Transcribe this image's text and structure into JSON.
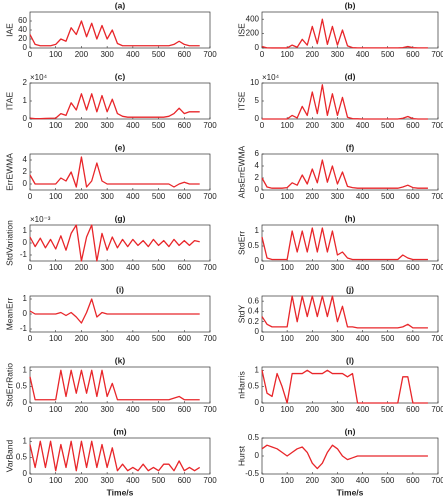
{
  "chart_data": [
    {
      "type": "line",
      "title": "(a)",
      "ylabel": "IAE",
      "color": "#e8262a",
      "xlim": [
        0,
        700
      ],
      "xticks": [
        0,
        100,
        200,
        300,
        400,
        500,
        600,
        700
      ],
      "ylim": [
        0,
        80
      ],
      "yticks": [
        0,
        20,
        40,
        60
      ],
      "x": [
        0,
        20,
        40,
        60,
        80,
        100,
        120,
        140,
        160,
        180,
        200,
        220,
        240,
        260,
        280,
        300,
        320,
        340,
        360,
        380,
        400,
        420,
        440,
        460,
        480,
        500,
        520,
        540,
        560,
        580,
        600,
        620,
        640,
        660
      ],
      "values": [
        30,
        8,
        5,
        5,
        5,
        8,
        20,
        15,
        45,
        30,
        60,
        25,
        55,
        20,
        50,
        20,
        40,
        10,
        5,
        5,
        5,
        5,
        5,
        5,
        5,
        5,
        5,
        5,
        8,
        15,
        8,
        5,
        5,
        5
      ]
    },
    {
      "type": "line",
      "title": "(b)",
      "ylabel": "ISE",
      "color": "#e8262a",
      "xlim": [
        0,
        700
      ],
      "xticks": [
        0,
        100,
        200,
        300,
        400,
        500,
        600,
        700
      ],
      "ylim": [
        0,
        500
      ],
      "yticks": [
        0,
        200,
        400
      ],
      "x": [
        0,
        20,
        40,
        60,
        80,
        100,
        120,
        140,
        160,
        180,
        200,
        220,
        240,
        260,
        280,
        300,
        320,
        340,
        360,
        380,
        400,
        420,
        440,
        460,
        480,
        500,
        520,
        540,
        560,
        580,
        600,
        620,
        640,
        660
      ],
      "values": [
        20,
        2,
        1,
        1,
        1,
        1,
        40,
        10,
        120,
        40,
        300,
        60,
        400,
        50,
        300,
        40,
        250,
        30,
        5,
        2,
        2,
        2,
        2,
        2,
        2,
        2,
        2,
        2,
        5,
        20,
        5,
        2,
        2,
        2
      ]
    },
    {
      "type": "line",
      "title": "(c)",
      "ylabel": "ITAE",
      "exponent_label": "×10⁴",
      "color": "#e8262a",
      "xlim": [
        0,
        700
      ],
      "xticks": [
        0,
        100,
        200,
        300,
        400,
        500,
        600,
        700
      ],
      "ylim": [
        0,
        2
      ],
      "yticks": [
        0,
        1,
        2
      ],
      "x": [
        0,
        20,
        40,
        60,
        80,
        100,
        120,
        140,
        160,
        180,
        200,
        220,
        240,
        260,
        280,
        300,
        320,
        340,
        360,
        380,
        400,
        420,
        440,
        460,
        480,
        500,
        520,
        540,
        560,
        580,
        600,
        620,
        640,
        660
      ],
      "values": [
        0.05,
        0.02,
        0.02,
        0.03,
        0.04,
        0.05,
        0.3,
        0.2,
        0.9,
        0.5,
        1.4,
        0.5,
        1.4,
        0.4,
        1.3,
        0.4,
        1.1,
        0.3,
        0.15,
        0.1,
        0.1,
        0.1,
        0.1,
        0.1,
        0.1,
        0.1,
        0.1,
        0.15,
        0.3,
        0.6,
        0.3,
        0.4,
        0.4,
        0.4
      ]
    },
    {
      "type": "line",
      "title": "(d)",
      "ylabel": "ITSE",
      "exponent_label": "×10⁴",
      "color": "#e8262a",
      "xlim": [
        0,
        700
      ],
      "xticks": [
        0,
        100,
        200,
        300,
        400,
        500,
        600,
        700
      ],
      "ylim": [
        0,
        10
      ],
      "yticks": [
        0,
        5,
        10
      ],
      "x": [
        0,
        20,
        40,
        60,
        80,
        100,
        120,
        140,
        160,
        180,
        200,
        220,
        240,
        260,
        280,
        300,
        320,
        340,
        360,
        380,
        400,
        420,
        440,
        460,
        480,
        500,
        520,
        540,
        560,
        580,
        600,
        620,
        640,
        660
      ],
      "values": [
        0,
        0,
        0,
        0,
        0,
        0,
        1,
        0.3,
        3.5,
        1,
        7.5,
        1.5,
        9.5,
        1,
        7,
        1,
        6,
        0.5,
        0.1,
        0.05,
        0,
        0,
        0,
        0,
        0,
        0,
        0,
        0,
        0.2,
        0.7,
        0.1,
        0,
        0,
        0
      ]
    },
    {
      "type": "line",
      "title": "(e)",
      "ylabel": "ErrEWMA",
      "color": "#e8262a",
      "xlim": [
        0,
        700
      ],
      "xticks": [
        0,
        100,
        200,
        300,
        400,
        500,
        600,
        700
      ],
      "ylim": [
        -1,
        5
      ],
      "yticks": [
        0,
        2,
        4
      ],
      "x": [
        0,
        20,
        40,
        60,
        80,
        100,
        120,
        140,
        160,
        180,
        200,
        220,
        240,
        260,
        280,
        300,
        320,
        340,
        360,
        380,
        400,
        420,
        440,
        460,
        480,
        500,
        520,
        540,
        560,
        580,
        600,
        620,
        640,
        660
      ],
      "values": [
        1.5,
        0,
        0,
        0,
        0,
        0,
        1,
        0.5,
        2,
        -0.5,
        4.5,
        -0.5,
        0.5,
        3.5,
        0.5,
        0,
        0,
        0,
        0,
        0,
        0,
        0,
        0,
        0,
        0,
        0,
        0,
        0,
        -0.5,
        0,
        0.3,
        0,
        0,
        0
      ]
    },
    {
      "type": "line",
      "title": "(f)",
      "ylabel": "AbsErrEWMA",
      "color": "#e8262a",
      "xlim": [
        0,
        700
      ],
      "xticks": [
        0,
        100,
        200,
        300,
        400,
        500,
        600,
        700
      ],
      "ylim": [
        0,
        6
      ],
      "yticks": [
        0,
        2,
        4,
        6
      ],
      "x": [
        0,
        20,
        40,
        60,
        80,
        100,
        120,
        140,
        160,
        180,
        200,
        220,
        240,
        260,
        280,
        300,
        320,
        340,
        360,
        380,
        400,
        420,
        440,
        460,
        480,
        500,
        520,
        540,
        560,
        580,
        600,
        620,
        640,
        660
      ],
      "values": [
        2,
        0.5,
        0.3,
        0.3,
        0.3,
        0.4,
        1.2,
        0.8,
        2.5,
        1,
        3.5,
        1.2,
        5,
        1.3,
        4,
        1,
        3,
        0.6,
        0.4,
        0.3,
        0.3,
        0.3,
        0.3,
        0.3,
        0.3,
        0.3,
        0.3,
        0.3,
        0.5,
        0.8,
        0.4,
        0.3,
        0.3,
        0.3
      ]
    },
    {
      "type": "line",
      "title": "(g)",
      "ylabel": "StdVariation",
      "exponent_label": "×10⁻³",
      "color": "#e8262a",
      "xlim": [
        0,
        700
      ],
      "xticks": [
        0,
        100,
        200,
        300,
        400,
        500,
        600,
        700
      ],
      "ylim": [
        -1.5,
        1.5
      ],
      "yticks": [
        -1,
        0,
        1
      ],
      "x": [
        0,
        20,
        40,
        60,
        80,
        100,
        120,
        140,
        160,
        180,
        200,
        220,
        240,
        260,
        280,
        300,
        320,
        340,
        360,
        380,
        400,
        420,
        440,
        460,
        480,
        500,
        520,
        540,
        560,
        580,
        600,
        620,
        640,
        660
      ],
      "values": [
        0.5,
        -0.3,
        0.4,
        -0.4,
        0.3,
        -0.5,
        0.6,
        -0.6,
        0.8,
        1.5,
        -1.5,
        0.5,
        1.5,
        -1.5,
        0.8,
        -0.6,
        0.5,
        -0.4,
        0.3,
        -0.3,
        0.3,
        -0.2,
        0.2,
        -0.3,
        0.3,
        -0.2,
        0.2,
        -0.3,
        0.3,
        -0.2,
        0.2,
        -0.2,
        0.2,
        0.1
      ]
    },
    {
      "type": "line",
      "title": "(h)",
      "ylabel": "StdErr",
      "color": "#e8262a",
      "xlim": [
        0,
        700
      ],
      "xticks": [
        0,
        100,
        200,
        300,
        400,
        500,
        600,
        700
      ],
      "ylim": [
        0,
        1.2
      ],
      "yticks": [
        0,
        0.5,
        1
      ],
      "x": [
        0,
        20,
        40,
        60,
        80,
        100,
        120,
        140,
        160,
        180,
        200,
        220,
        240,
        260,
        280,
        300,
        320,
        340,
        360,
        380,
        400,
        420,
        440,
        460,
        480,
        500,
        520,
        540,
        560,
        580,
        600,
        620,
        640,
        660
      ],
      "values": [
        0.8,
        0.1,
        0.05,
        0.05,
        0.05,
        0.05,
        1,
        0.3,
        1,
        0.3,
        1.1,
        0.3,
        1.1,
        0.3,
        1,
        0.2,
        0.3,
        0.1,
        0.05,
        0.05,
        0.05,
        0.05,
        0.05,
        0.05,
        0.05,
        0.05,
        0.05,
        0.05,
        0.2,
        0.1,
        0.05,
        0.05,
        0.05,
        0.05
      ]
    },
    {
      "type": "line",
      "title": "(i)",
      "ylabel": "MeanErr",
      "color": "#e8262a",
      "xlim": [
        0,
        700
      ],
      "xticks": [
        0,
        100,
        200,
        300,
        400,
        500,
        600,
        700
      ],
      "ylim": [
        -1.2,
        1.2
      ],
      "yticks": [
        -1,
        0,
        1
      ],
      "x": [
        0,
        20,
        40,
        60,
        80,
        100,
        120,
        140,
        160,
        180,
        200,
        220,
        240,
        260,
        280,
        300,
        320,
        340,
        360,
        380,
        400,
        420,
        440,
        460,
        480,
        500,
        520,
        540,
        560,
        580,
        600,
        620,
        640,
        660
      ],
      "values": [
        0.2,
        0,
        0,
        0,
        0,
        0,
        0.1,
        -0.1,
        0.1,
        -0.2,
        -0.6,
        0.1,
        1,
        -0.2,
        0.1,
        0,
        0,
        0,
        0,
        0,
        0,
        0,
        0,
        0,
        0,
        0,
        0,
        0,
        0,
        0,
        0,
        0,
        0,
        0
      ]
    },
    {
      "type": "line",
      "title": "(j)",
      "ylabel": "StdY",
      "color": "#e8262a",
      "xlim": [
        0,
        700
      ],
      "xticks": [
        0,
        100,
        200,
        300,
        400,
        500,
        600,
        700
      ],
      "ylim": [
        0,
        0.7
      ],
      "yticks": [
        0,
        0.2,
        0.4,
        0.6
      ],
      "x": [
        0,
        20,
        40,
        60,
        80,
        100,
        120,
        140,
        160,
        180,
        200,
        220,
        240,
        260,
        280,
        300,
        320,
        340,
        360,
        380,
        400,
        420,
        440,
        460,
        480,
        500,
        520,
        540,
        560,
        580,
        600,
        620,
        640,
        660
      ],
      "values": [
        0.3,
        0.15,
        0.1,
        0.1,
        0.1,
        0.1,
        0.7,
        0.2,
        0.7,
        0.3,
        0.7,
        0.3,
        0.7,
        0.3,
        0.7,
        0.2,
        0.5,
        0.1,
        0.1,
        0.08,
        0.08,
        0.08,
        0.08,
        0.08,
        0.08,
        0.08,
        0.08,
        0.08,
        0.1,
        0.15,
        0.08,
        0.08,
        0.08,
        0.08
      ]
    },
    {
      "type": "line",
      "title": "(k)",
      "ylabel": "StdErrRatio",
      "color": "#e8262a",
      "xlim": [
        0,
        700
      ],
      "xticks": [
        0,
        100,
        200,
        300,
        400,
        500,
        600,
        700
      ],
      "ylim": [
        0,
        1.1
      ],
      "yticks": [
        0,
        0.5,
        1
      ],
      "x": [
        0,
        20,
        40,
        60,
        80,
        100,
        120,
        140,
        160,
        180,
        200,
        220,
        240,
        260,
        280,
        300,
        320,
        340,
        360,
        380,
        400,
        420,
        440,
        460,
        480,
        500,
        520,
        540,
        560,
        580,
        600,
        620,
        640,
        660
      ],
      "values": [
        0.8,
        0.1,
        0.1,
        0.1,
        0.1,
        0.1,
        1,
        0.2,
        1,
        0.3,
        1,
        0.3,
        1,
        0.2,
        1,
        0.2,
        0.6,
        0.1,
        0.1,
        0.1,
        0.1,
        0.1,
        0.1,
        0.1,
        0.1,
        0.1,
        0.1,
        0.1,
        0.15,
        0.2,
        0.1,
        0.1,
        0.1,
        0.1
      ]
    },
    {
      "type": "line",
      "title": "(l)",
      "ylabel": "nHarris",
      "color": "#e8262a",
      "xlim": [
        0,
        700
      ],
      "xticks": [
        0,
        100,
        200,
        300,
        400,
        500,
        600,
        700
      ],
      "ylim": [
        0,
        1.1
      ],
      "yticks": [
        0,
        0.5,
        1
      ],
      "x": [
        0,
        20,
        40,
        60,
        80,
        100,
        120,
        140,
        160,
        180,
        200,
        220,
        240,
        260,
        280,
        300,
        320,
        340,
        360,
        380,
        400,
        420,
        440,
        460,
        480,
        500,
        520,
        540,
        560,
        580,
        600,
        620,
        640,
        660
      ],
      "values": [
        1,
        0.3,
        0.2,
        0.9,
        0.5,
        0,
        0.9,
        0.9,
        0.9,
        1,
        0.9,
        0.9,
        0.9,
        1,
        0.9,
        0.9,
        0.9,
        0.8,
        0.9,
        0,
        0,
        0,
        0,
        0,
        0,
        0,
        0,
        0,
        0.8,
        0.8,
        0,
        0,
        0,
        0
      ]
    },
    {
      "type": "line",
      "title": "(m)",
      "ylabel": "VarBand",
      "xlabel": "Time/s",
      "color": "#e8262a",
      "xlim": [
        0,
        700
      ],
      "xticks": [
        0,
        100,
        200,
        300,
        400,
        500,
        600,
        700
      ],
      "ylim": [
        0,
        1.1
      ],
      "yticks": [
        0,
        0.5,
        1
      ],
      "x": [
        0,
        20,
        40,
        60,
        80,
        100,
        120,
        140,
        160,
        180,
        200,
        220,
        240,
        260,
        280,
        300,
        320,
        340,
        360,
        380,
        400,
        420,
        440,
        460,
        480,
        500,
        520,
        540,
        560,
        580,
        600,
        620,
        640,
        660
      ],
      "values": [
        0.9,
        0.2,
        1,
        0.2,
        1,
        0.1,
        0.9,
        0.2,
        1,
        0.1,
        1,
        0.2,
        1,
        0.2,
        0.9,
        0.2,
        0.8,
        0.1,
        0.3,
        0.1,
        0.2,
        0.1,
        0.3,
        0.1,
        0.2,
        0.1,
        0.3,
        0.3,
        0.1,
        0.4,
        0.1,
        0.2,
        0.1,
        0.2
      ]
    },
    {
      "type": "line",
      "title": "(n)",
      "ylabel": "Hurst",
      "xlabel": "Time/s",
      "color": "#e8262a",
      "xlim": [
        0,
        700
      ],
      "xticks": [
        0,
        100,
        200,
        300,
        400,
        500,
        600,
        700
      ],
      "ylim": [
        -0.5,
        0.5
      ],
      "yticks": [
        -0.5,
        0,
        0.5
      ],
      "x": [
        0,
        20,
        40,
        60,
        80,
        100,
        120,
        140,
        160,
        180,
        200,
        220,
        240,
        260,
        280,
        300,
        320,
        340,
        360,
        380,
        400,
        420,
        440,
        460,
        480,
        500,
        520,
        540,
        560,
        580,
        600,
        620,
        640,
        660
      ],
      "values": [
        0.2,
        0.3,
        0.25,
        0.2,
        0.1,
        0,
        0.1,
        0.2,
        0.25,
        0.1,
        -0.2,
        -0.35,
        -0.2,
        0.1,
        0.3,
        0.2,
        0,
        -0.1,
        -0.05,
        0,
        0,
        0,
        0,
        0,
        0,
        0,
        0,
        0,
        0,
        0,
        0,
        0,
        0,
        0
      ]
    }
  ]
}
